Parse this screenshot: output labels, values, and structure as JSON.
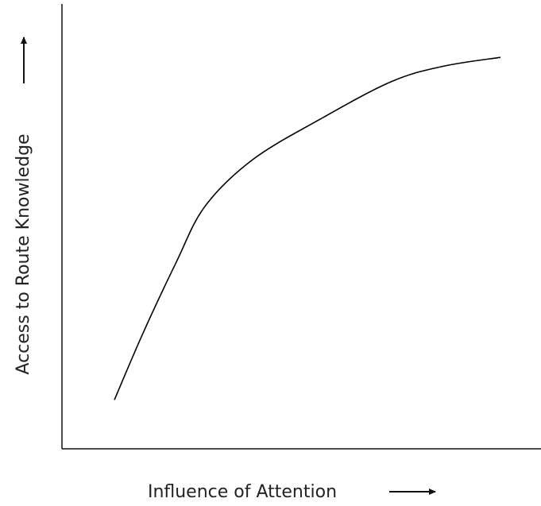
{
  "chart_data": {
    "type": "line",
    "x_label": "Influence of Attention",
    "y_label": "Access to Route Knowledge",
    "x": [
      11,
      17,
      24,
      30,
      40,
      54,
      69,
      80,
      92
    ],
    "series": [
      {
        "color": "#000000",
        "values": [
          11,
          26,
          42,
          54.5,
          65,
          74,
          82.5,
          86,
          88
        ]
      }
    ],
    "xlim": [
      0,
      100
    ],
    "ylim": [
      0,
      100
    ]
  }
}
